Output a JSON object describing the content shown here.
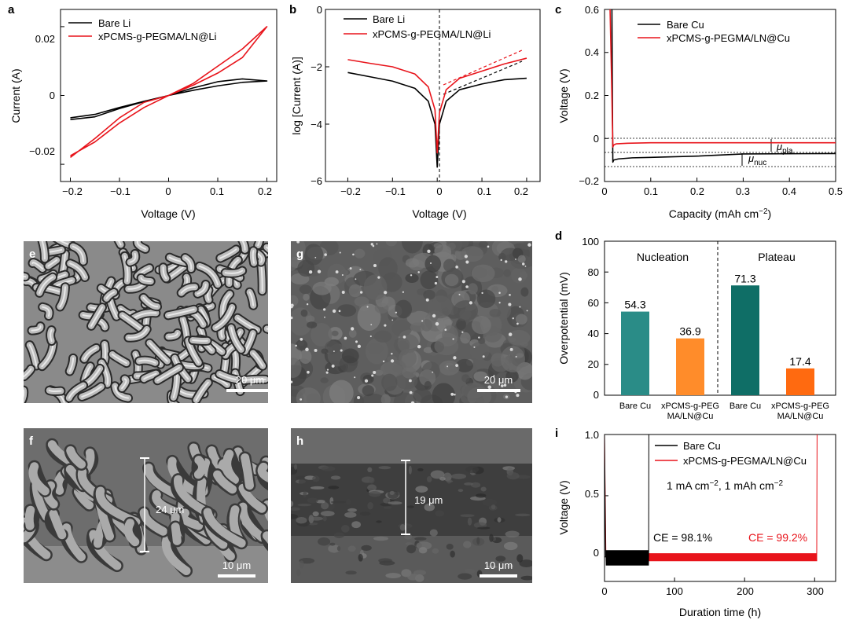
{
  "colors": {
    "black": "#000000",
    "red": "#e8141b",
    "teal": "#2a8c87",
    "dark_teal": "#0f6e66",
    "orange": "#ff8c2a",
    "dark_orange": "#ff6a10"
  },
  "panel_letters": {
    "a": "a",
    "b": "b",
    "c": "c",
    "d": "d",
    "e": "e",
    "f": "f",
    "g": "g",
    "h": "h",
    "i": "i"
  },
  "chart_data": [
    {
      "id": "a",
      "type": "line",
      "xlabel": "Voltage (V)",
      "ylabel": "Current (A)",
      "xlim": [
        -0.22,
        0.22
      ],
      "ylim": [
        -0.025,
        0.025
      ],
      "xticks": [
        "−0.2",
        "−0.1",
        "0",
        "0.1",
        "0.2"
      ],
      "yticks": [
        "0.02",
        "0",
        "−0.02"
      ],
      "legend_position": "top-left",
      "series": [
        {
          "name": "Bare Li",
          "color": "#000000",
          "x": [
            -0.2,
            -0.15,
            -0.1,
            -0.05,
            0,
            0.05,
            0.1,
            0.15,
            0.2,
            0.15,
            0.1,
            0.05,
            0,
            -0.05,
            -0.1,
            -0.15,
            -0.2
          ],
          "y": [
            -0.0065,
            -0.0055,
            -0.0035,
            -0.0017,
            0.0,
            0.0015,
            0.0028,
            0.0038,
            0.0042,
            0.0048,
            0.004,
            0.0022,
            0.0,
            -0.0018,
            -0.0038,
            -0.0062,
            -0.007
          ]
        },
        {
          "name": "xPCMS-g-PEGMA/LN@Li",
          "color": "#e8141b",
          "x": [
            -0.2,
            -0.15,
            -0.1,
            -0.05,
            0,
            0.05,
            0.1,
            0.15,
            0.2,
            0.15,
            0.1,
            0.05,
            0,
            -0.05,
            -0.1,
            -0.15,
            -0.2
          ],
          "y": [
            -0.018,
            -0.0125,
            -0.0065,
            -0.002,
            0.0,
            0.003,
            0.0065,
            0.011,
            0.02,
            0.0135,
            0.0085,
            0.0035,
            0.0,
            -0.0035,
            -0.008,
            -0.0135,
            -0.0175
          ]
        }
      ]
    },
    {
      "id": "b",
      "type": "line",
      "xlabel": "Voltage (V)",
      "ylabel": "log [Current (A)]",
      "xlim": [
        -0.25,
        0.23
      ],
      "ylim": [
        -6,
        0
      ],
      "xticks": [
        "−0.2",
        "−0.1",
        "0",
        "0.1",
        "0.2"
      ],
      "yticks": [
        "0",
        "−2",
        "−4",
        "−6"
      ],
      "legend_position": "top-right",
      "series": [
        {
          "name": "Bare Li",
          "color": "#000000",
          "x": [
            -0.2,
            -0.15,
            -0.1,
            -0.05,
            -0.02,
            -0.005,
            0,
            0.005,
            0.02,
            0.05,
            0.1,
            0.15,
            0.2
          ],
          "y": [
            -2.2,
            -2.35,
            -2.5,
            -2.75,
            -3.2,
            -4.0,
            -5.5,
            -4.0,
            -3.2,
            -2.8,
            -2.6,
            -2.45,
            -2.4
          ]
        },
        {
          "name": "xPCMS-g-PEGMA/LN@Li",
          "color": "#e8141b",
          "x": [
            -0.2,
            -0.15,
            -0.1,
            -0.05,
            -0.02,
            -0.005,
            0,
            0.005,
            0.02,
            0.05,
            0.1,
            0.15,
            0.2
          ],
          "y": [
            -1.75,
            -1.88,
            -2.0,
            -2.25,
            -2.7,
            -3.5,
            -5.0,
            -3.6,
            -2.8,
            -2.4,
            -2.15,
            -1.9,
            -1.7
          ]
        }
      ]
    },
    {
      "id": "c",
      "type": "line",
      "xlabel": "Capacity (mAh cm−2)",
      "xlabel_main": "Capacity (mAh cm",
      "xlabel_sup": "−2",
      "xlabel_tail": ")",
      "ylabel": "Voltage (V)",
      "xlim": [
        0,
        0.5
      ],
      "ylim": [
        -0.2,
        0.6
      ],
      "xticks": [
        "0",
        "0.1",
        "0.2",
        "0.3",
        "0.4",
        "0.5"
      ],
      "yticks": [
        "0.6",
        "0.4",
        "0.2",
        "0",
        "−0.2"
      ],
      "legend_position": "top-right",
      "annotations": {
        "mu_pla": "μ",
        "mu_pla_sub": "pla",
        "mu_nuc": "μ",
        "mu_nuc_sub": "nuc"
      },
      "series": [
        {
          "name": "Bare Cu",
          "color": "#000000",
          "x": [
            0.016,
            0.017,
            0.018,
            0.02,
            0.03,
            0.06,
            0.1,
            0.2,
            0.3,
            0.5
          ],
          "y": [
            0.6,
            0.2,
            -0.11,
            -0.1,
            -0.095,
            -0.09,
            -0.088,
            -0.082,
            -0.072,
            -0.07
          ]
        },
        {
          "name": "xPCMS-g-PEGMA/LN@Cu",
          "color": "#e8141b",
          "x": [
            0.012,
            0.015,
            0.018,
            0.02,
            0.025,
            0.05,
            0.1,
            0.3,
            0.5
          ],
          "y": [
            0.6,
            0.3,
            -0.04,
            -0.03,
            -0.025,
            -0.022,
            -0.02,
            -0.02,
            -0.02
          ]
        }
      ]
    },
    {
      "id": "d",
      "type": "bar",
      "ylabel": "Overpotential (mV)",
      "ylim": [
        0,
        100
      ],
      "yticks": [
        "100",
        "80",
        "60",
        "40",
        "20",
        "0"
      ],
      "section_labels": [
        "Nucleation",
        "Plateau"
      ],
      "categories": [
        "Bare Cu",
        "xPCMS-g-PEG MA/LN@Cu",
        "Bare Cu",
        "xPCMS-g-PEG MA/LN@Cu"
      ],
      "category_lines": [
        [
          "Bare Cu"
        ],
        [
          "xPCMS-g-PEG",
          "MA/LN@Cu"
        ],
        [
          "Bare Cu"
        ],
        [
          "xPCMS-g-PEG",
          "MA/LN@Cu"
        ]
      ],
      "values": [
        54.3,
        36.9,
        71.3,
        17.4
      ],
      "value_labels": [
        "54.3",
        "36.9",
        "71.3",
        "17.4"
      ],
      "colors": [
        "#2a8c87",
        "#ff8c2a",
        "#0f6e66",
        "#ff6a10"
      ]
    },
    {
      "id": "i",
      "type": "line",
      "xlabel": "Duration time (h)",
      "ylabel": "Voltage (V)",
      "xlim": [
        0,
        330
      ],
      "ylim": [
        -0.2,
        1.0
      ],
      "xticks": [
        "0",
        "100",
        "200",
        "300"
      ],
      "yticks": [
        "1.0",
        "0.5",
        "0"
      ],
      "legend_position": "top-left",
      "condition_text": "1 mA cm−2, 1 mAh cm−2",
      "condition_parts": [
        "1 mA cm",
        "−2",
        ", 1 mAh cm",
        "−2"
      ],
      "ce_labels": [
        "CE = 98.1%",
        "CE = 99.2%"
      ],
      "series": [
        {
          "name": "Bare Cu",
          "color": "#000000",
          "x": [
            0,
            5,
            10,
            30,
            62,
            63,
            64
          ],
          "y": [
            1.0,
            -0.02,
            0.0,
            0.0,
            0.0,
            1.0,
            1.0
          ],
          "end_h": 63
        },
        {
          "name": "xPCMS-g-PEGMA/LN@Cu",
          "color": "#e8141b",
          "x": [
            0,
            3,
            10,
            100,
            200,
            300,
            303,
            304
          ],
          "y": [
            1.0,
            0.0,
            0.0,
            0.0,
            0.0,
            0.0,
            0.0,
            1.0
          ],
          "end_h": 303
        }
      ]
    }
  ],
  "sem": {
    "e": {
      "scale": "20 μm"
    },
    "g": {
      "scale": "20 μm"
    },
    "f": {
      "scale": "10 μm",
      "thickness": "24 μm"
    },
    "h": {
      "scale": "10 μm",
      "thickness": "19 μm"
    }
  }
}
